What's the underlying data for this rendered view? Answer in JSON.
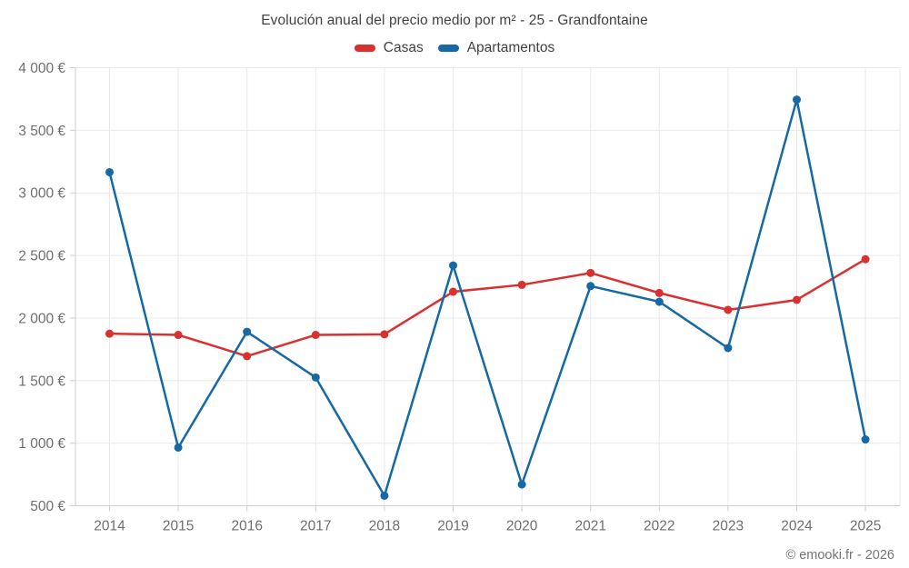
{
  "chart_data": {
    "type": "line",
    "title": "Evolución anual del precio medio por m² - 25 - Grandfontaine",
    "xlabel": "",
    "ylabel": "",
    "x": [
      2014,
      2015,
      2016,
      2017,
      2018,
      2019,
      2020,
      2021,
      2022,
      2023,
      2024,
      2025
    ],
    "series": [
      {
        "name": "Casas",
        "color": "#d8312f",
        "values": [
          1875,
          1865,
          1695,
          1865,
          1870,
          2210,
          2265,
          2360,
          2200,
          2065,
          2145,
          2470
        ]
      },
      {
        "name": "Apartamentos",
        "color": "#1569a4",
        "values": [
          3165,
          965,
          1890,
          1525,
          580,
          2420,
          670,
          2255,
          2130,
          1760,
          3745,
          1030
        ]
      }
    ],
    "ylim": [
      500,
      4000
    ],
    "y_ticks": [
      500,
      1000,
      1500,
      2000,
      2500,
      3000,
      3500,
      4000
    ],
    "y_tick_labels": [
      "500 €",
      "1 000 €",
      "1 500 €",
      "2 000 €",
      "2 500 €",
      "3 000 €",
      "3 500 €",
      "4 000 €"
    ],
    "grid": true,
    "legend_position": "top",
    "marker": "circle",
    "colors": {
      "grid": "#e9e9e9",
      "axis": "#cfcfcf",
      "tick_text": "#6f6f6f",
      "title_text": "#424242"
    }
  },
  "footer": {
    "copyright": "© emooki.fr - 2026"
  }
}
